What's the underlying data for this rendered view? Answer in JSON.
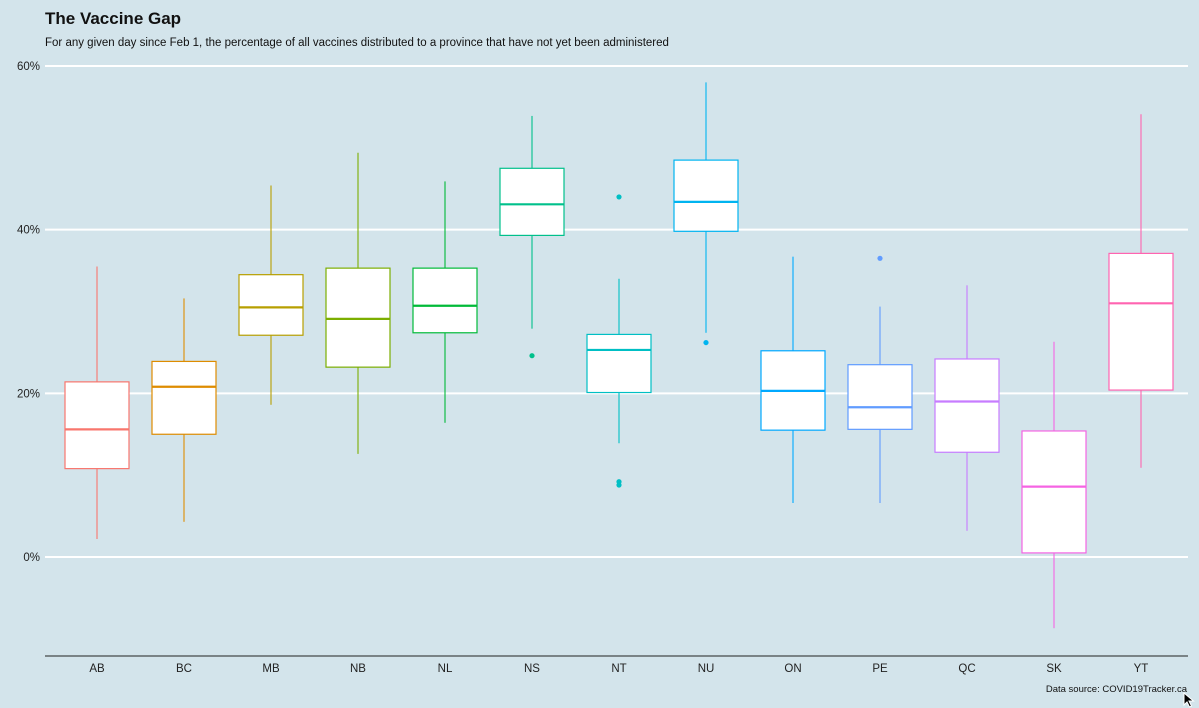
{
  "chart_data": {
    "type": "boxplot",
    "title": "The Vaccine Gap",
    "subtitle": "For any given day since Feb 1, the percentage of all vaccines distributed to a province that have not yet been administered",
    "source": "Data source: COVID19Tracker.ca",
    "xlabel": "",
    "ylabel": "",
    "ylim": [
      -12,
      60
    ],
    "y_ticks": [
      0,
      20,
      40,
      60
    ],
    "y_tick_labels": [
      "0%",
      "20%",
      "40%",
      "60%"
    ],
    "grid": "horizontal-major",
    "legend": "none",
    "categories": [
      "AB",
      "BC",
      "MB",
      "NB",
      "NL",
      "NS",
      "NT",
      "NU",
      "ON",
      "PE",
      "QC",
      "SK",
      "YT"
    ],
    "boxes": [
      {
        "category": "AB",
        "min": 2.2,
        "q1": 10.8,
        "median": 15.6,
        "q3": 21.4,
        "max": 35.5,
        "outliers": [],
        "color": "#f8766d"
      },
      {
        "category": "BC",
        "min": 4.3,
        "q1": 15.0,
        "median": 20.8,
        "q3": 23.9,
        "max": 31.6,
        "outliers": [],
        "color": "#de8c00"
      },
      {
        "category": "MB",
        "min": 18.6,
        "q1": 27.1,
        "median": 30.5,
        "q3": 34.5,
        "max": 45.4,
        "outliers": [],
        "color": "#b79f00"
      },
      {
        "category": "NB",
        "min": 12.6,
        "q1": 23.2,
        "median": 29.1,
        "q3": 35.3,
        "max": 49.4,
        "outliers": [],
        "color": "#7cae00"
      },
      {
        "category": "NL",
        "min": 16.4,
        "q1": 27.4,
        "median": 30.7,
        "q3": 35.3,
        "max": 45.9,
        "outliers": [],
        "color": "#00ba38"
      },
      {
        "category": "NS",
        "min": 27.9,
        "q1": 39.3,
        "median": 43.1,
        "q3": 47.5,
        "max": 53.9,
        "outliers": [
          24.6
        ],
        "color": "#00c08b"
      },
      {
        "category": "NT",
        "min": 13.9,
        "q1": 20.1,
        "median": 25.3,
        "q3": 27.2,
        "max": 34.0,
        "outliers": [
          44.0,
          9.2,
          8.8
        ],
        "color": "#00bfc4"
      },
      {
        "category": "NU",
        "min": 27.4,
        "q1": 39.8,
        "median": 43.4,
        "q3": 48.5,
        "max": 58.0,
        "outliers": [
          26.2
        ],
        "color": "#00b4f0"
      },
      {
        "category": "ON",
        "min": 6.6,
        "q1": 15.5,
        "median": 20.3,
        "q3": 25.2,
        "max": 36.7,
        "outliers": [],
        "color": "#00a9ff"
      },
      {
        "category": "PE",
        "min": 6.6,
        "q1": 15.6,
        "median": 18.3,
        "q3": 23.5,
        "max": 30.6,
        "outliers": [
          36.5
        ],
        "color": "#619cff"
      },
      {
        "category": "QC",
        "min": 3.2,
        "q1": 12.8,
        "median": 19.0,
        "q3": 24.2,
        "max": 33.2,
        "outliers": [],
        "color": "#c77cff"
      },
      {
        "category": "SK",
        "min": -8.7,
        "q1": 0.5,
        "median": 8.6,
        "q3": 15.4,
        "max": 26.3,
        "outliers": [],
        "color": "#f564e3"
      },
      {
        "category": "YT",
        "min": 10.9,
        "q1": 20.4,
        "median": 31.0,
        "q3": 37.1,
        "max": 54.1,
        "outliers": [],
        "color": "#ff64b0"
      }
    ]
  }
}
